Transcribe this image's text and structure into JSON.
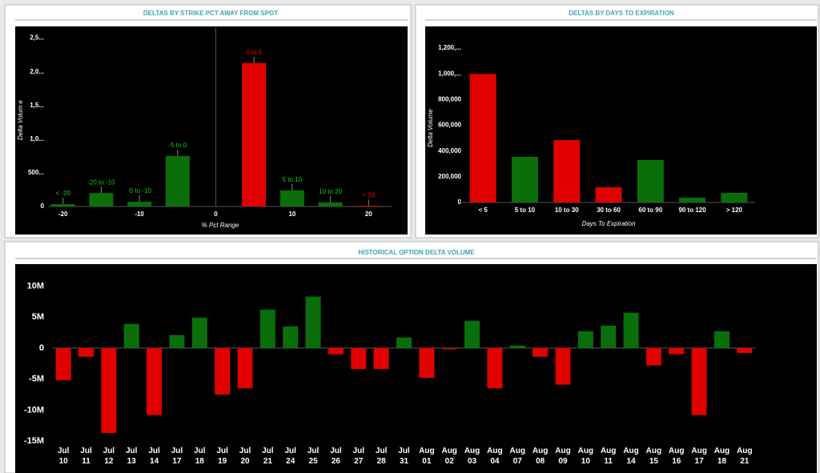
{
  "chart_data": [
    {
      "type": "bar",
      "title": "DELTAS BY STRIKE PCT AWAY FROM SPOT",
      "ylabel": "Delta Volum e",
      "xlabel": "% Pct Range",
      "x": [
        -20,
        -15,
        -10,
        -5,
        5,
        10,
        15,
        20
      ],
      "labels": [
        "< -20",
        "-20 to -10",
        "-5 to -10",
        "-5 to 0",
        "0 to 5",
        "5 to 10",
        "10 to 20",
        "> 20"
      ],
      "values": [
        35000,
        200000,
        70000,
        750000,
        2130000,
        240000,
        60000,
        10000
      ],
      "colors": [
        "#0a6e0a",
        "#0a6e0a",
        "#0a6e0a",
        "#0a6e0a",
        "#e00000",
        "#0a6e0a",
        "#0a6e0a",
        "#e00000"
      ],
      "xlim": [
        -25,
        25
      ],
      "xticks": [
        -20,
        -10,
        0,
        10,
        20
      ],
      "ylim": [
        0,
        2650000
      ],
      "yticks": [
        0,
        {
          "value": 500000,
          "label": "500..."
        },
        {
          "value": 1000000,
          "label": "1,0..."
        },
        {
          "value": 1500000,
          "label": "1,5..."
        },
        {
          "value": 2000000,
          "label": "2,0..."
        },
        {
          "value": 2500000,
          "label": "2,5..."
        }
      ]
    },
    {
      "type": "bar",
      "title": "DELTAS BY DAYS TO EXPIRATION",
      "ylabel": "Delta Volume",
      "xlabel": "Days To Expiration",
      "categories": [
        "< 5",
        "5 to 10",
        "10 to 30",
        "30 to 60",
        "60 to 90",
        "90 to 120",
        "> 120"
      ],
      "values": [
        1000000,
        355000,
        485000,
        118000,
        330000,
        37000,
        75000
      ],
      "colors": [
        "#e00000",
        "#0a6e0a",
        "#e00000",
        "#e00000",
        "#0a6e0a",
        "#0a6e0a",
        "#0a6e0a"
      ],
      "ylim": [
        0,
        1350000
      ],
      "yticks": [
        0,
        {
          "value": 200000,
          "label": "200,000"
        },
        {
          "value": 400000,
          "label": "400,000"
        },
        {
          "value": 600000,
          "label": "600,000"
        },
        {
          "value": 800000,
          "label": "800,000"
        },
        {
          "value": 1000000,
          "label": "1,000,..."
        },
        {
          "value": 1200000,
          "label": "1,200,..."
        }
      ]
    },
    {
      "type": "bar",
      "title": "HISTORICAL OPTION DELTA VOLUME",
      "categories": [
        "Jul 10",
        "Jul 11",
        "Jul 12",
        "Jul 13",
        "Jul 14",
        "Jul 17",
        "Jul 18",
        "Jul 19",
        "Jul 20",
        "Jul 21",
        "Jul 24",
        "Jul 25",
        "Jul 26",
        "Jul 27",
        "Jul 28",
        "Jul 31",
        "Aug 01",
        "Aug 02",
        "Aug 03",
        "Aug 04",
        "Aug 07",
        "Aug 08",
        "Aug 09",
        "Aug 10",
        "Aug 11",
        "Aug 14",
        "Aug 15",
        "Aug 16",
        "Aug 17",
        "Aug 18",
        "Aug 21"
      ],
      "values": [
        -5200000,
        -1400000,
        -13700000,
        3900000,
        -10800000,
        2100000,
        4900000,
        -7500000,
        -6500000,
        6200000,
        3500000,
        8300000,
        -1000000,
        -3400000,
        -3400000,
        1700000,
        -4800000,
        -200000,
        4400000,
        -6500000,
        400000,
        -1400000,
        -5900000,
        2700000,
        3600000,
        5700000,
        -2800000,
        -1000000,
        -10800000,
        2700000,
        -800000
      ],
      "positive_color": "#0a6e0a",
      "negative_color": "#e00000",
      "ylim": [
        -15500000,
        12500000
      ],
      "yticks": [
        {
          "value": -15000000,
          "label": "-15M"
        },
        {
          "value": -10000000,
          "label": "-10M"
        },
        {
          "value": -5000000,
          "label": "-5M"
        },
        0,
        {
          "value": 5000000,
          "label": "5M"
        },
        {
          "value": 10000000,
          "label": "10M"
        }
      ]
    }
  ]
}
